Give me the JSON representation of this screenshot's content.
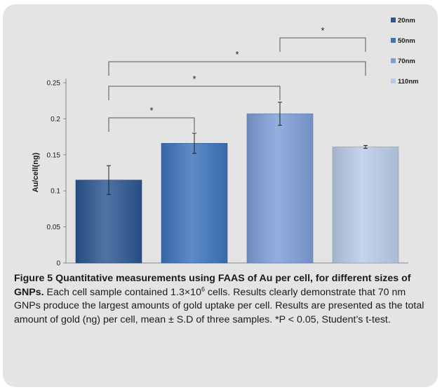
{
  "chart_data": {
    "type": "bar",
    "categories": [
      "20nm",
      "50nm",
      "70nm",
      "110nm"
    ],
    "values": [
      0.115,
      0.166,
      0.207,
      0.161
    ],
    "errors": [
      0.02,
      0.014,
      0.016,
      0.002
    ],
    "title": "",
    "xlabel": "",
    "ylabel": "Au/cell(ng)",
    "ylim": [
      0,
      0.25
    ],
    "yticks": [
      "0",
      "0.05",
      "0.1",
      "0.15",
      "0.2",
      "0.25"
    ],
    "grid": false,
    "legend_position": "top-right",
    "legend": [
      "20nm",
      "50nm",
      "70nm",
      "110nm"
    ],
    "colors": [
      "#2a5590",
      "#3c73bb",
      "#7d9ed8",
      "#b9cbe8"
    ],
    "significance": [
      {
        "from": 0,
        "to": 1,
        "label": "*"
      },
      {
        "from": 0,
        "to": 2,
        "label": "*"
      },
      {
        "from": 0,
        "to": 3,
        "label": "*"
      },
      {
        "from": 2,
        "to": 3,
        "label": "*"
      }
    ]
  },
  "caption": {
    "title": "Figure 5 Quantitative measurements using FAAS of Au per cell, for different sizes of GNPs.",
    "text_part1": " Each cell sample contained 1.3×10",
    "superscript": "6",
    "text_part2": " cells. Results clearly demonstrate that 70 nm GNPs produce the largest amounts of gold uptake per cell. Results are presented as the total amount of gold (ng) per cell, mean ± S.D of three samples. *P < 0.05, Student’s t-test."
  }
}
